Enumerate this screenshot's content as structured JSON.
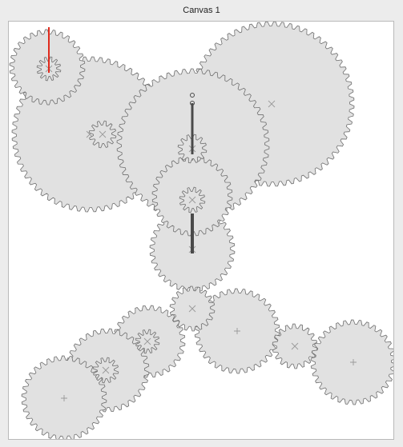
{
  "window": {
    "title": "Canvas 1"
  },
  "colors": {
    "gear_fill": "#e1e1e1",
    "gear_stroke": "#6f6f6f",
    "axle_mark": "#9a9a9a",
    "rod": "#4a4a4a",
    "pointer": "#e02a1c",
    "canvas_bg": "#ffffff"
  }
}
